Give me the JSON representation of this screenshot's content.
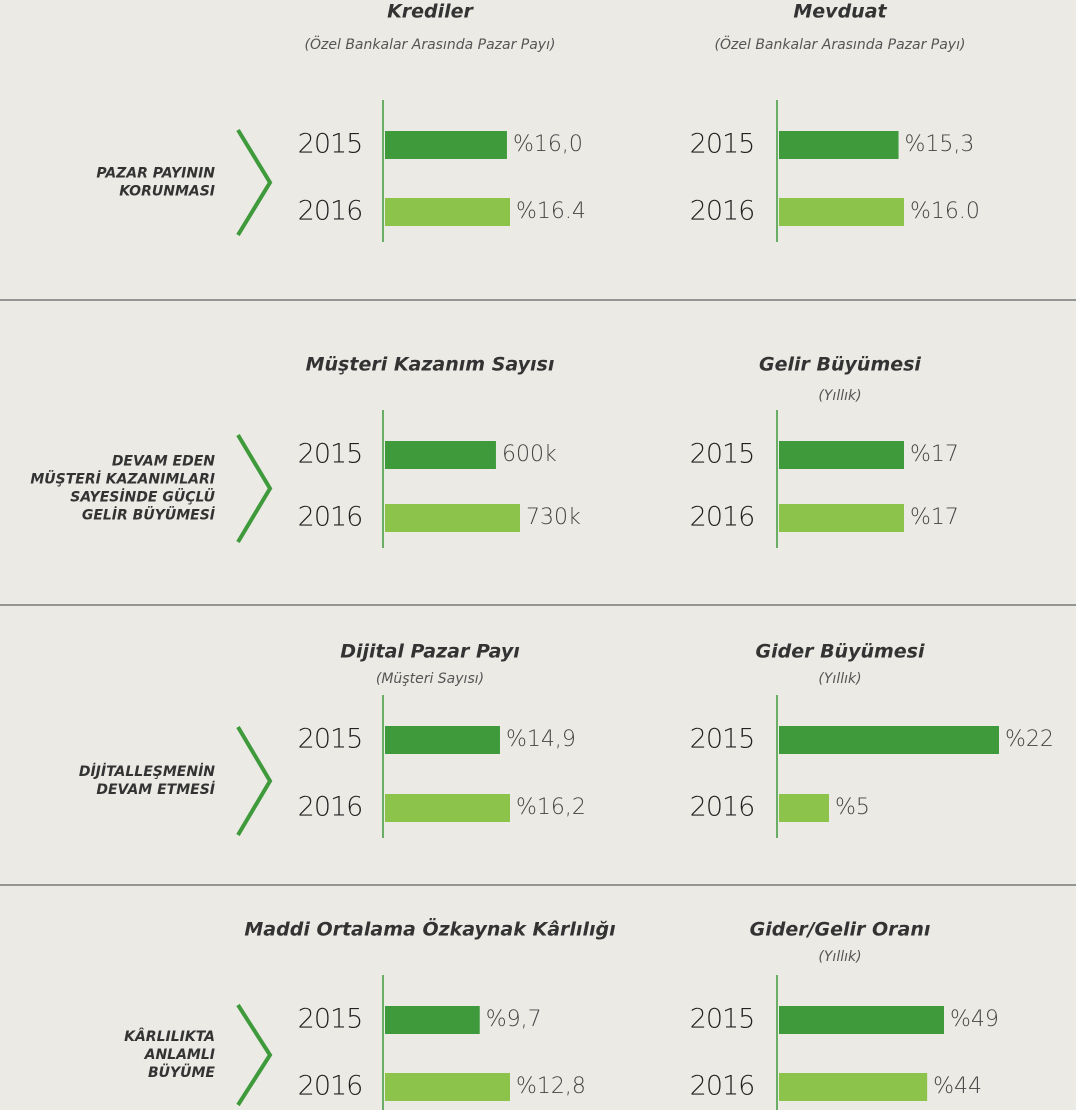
{
  "sections": [
    [
      "PAZAR PAYININ",
      "KORUNMASI"
    ],
    [
      "DEVAM EDEN",
      "MÜŞTERİ KAZANIMLARI",
      "SAYESİNDE GÜÇLÜ",
      "GELİR BÜYÜMESİ"
    ],
    [
      "DİJİTALLEŞMENİN",
      "DEVAM ETMESİ"
    ],
    [
      "KÂRLILIKTA",
      "ANLAMLI",
      "BÜYÜME"
    ]
  ],
  "chart_data": [
    {
      "type": "bar",
      "title": "Krediler",
      "subtitle": "(Özel Bankalar Arasında Pazar Payı)",
      "categories": [
        "2015",
        "2016"
      ],
      "values": [
        16.0,
        16.4
      ],
      "value_labels": [
        "%16,0",
        "%16.4"
      ],
      "colors": [
        "#3f9a3b",
        "#8cc34b"
      ]
    },
    {
      "type": "bar",
      "title": "Mevduat",
      "subtitle": "(Özel Bankalar Arasında Pazar Payı)",
      "categories": [
        "2015",
        "2016"
      ],
      "values": [
        15.3,
        16.0
      ],
      "value_labels": [
        "%15,3",
        "%16.0"
      ],
      "colors": [
        "#3f9a3b",
        "#8cc34b"
      ]
    },
    {
      "type": "bar",
      "title": "Müşteri Kazanım Sayısı",
      "categories": [
        "2015",
        "2016"
      ],
      "values": [
        600000,
        730000
      ],
      "value_labels": [
        "600k",
        "730k"
      ],
      "colors": [
        "#3f9a3b",
        "#8cc34b"
      ]
    },
    {
      "type": "bar",
      "title": "Gelir Büyümesi",
      "subtitle": "(Yıllık)",
      "categories": [
        "2015",
        "2016"
      ],
      "values": [
        17,
        17
      ],
      "value_labels": [
        "%17",
        "%17"
      ],
      "colors": [
        "#3f9a3b",
        "#8cc34b"
      ]
    },
    {
      "type": "bar",
      "title": "Dijital Pazar Payı",
      "subtitle": "(Müşteri Sayısı)",
      "categories": [
        "2015",
        "2016"
      ],
      "values": [
        14.9,
        16.2
      ],
      "value_labels": [
        "%14,9",
        "%16,2"
      ],
      "colors": [
        "#3f9a3b",
        "#8cc34b"
      ]
    },
    {
      "type": "bar",
      "title": "Gider Büyümesi",
      "subtitle": "(Yıllık)",
      "categories": [
        "2015",
        "2016"
      ],
      "values": [
        22,
        5
      ],
      "value_labels": [
        "%22",
        "%5"
      ],
      "colors": [
        "#3f9a3b",
        "#8cc34b"
      ]
    },
    {
      "type": "bar",
      "title": "Maddi Ortalama Özkaynak Kârlılığı",
      "categories": [
        "2015",
        "2016"
      ],
      "values": [
        9.7,
        12.8
      ],
      "value_labels": [
        "%9,7",
        "%12,8"
      ],
      "colors": [
        "#3f9a3b",
        "#8cc34b"
      ]
    },
    {
      "type": "bar",
      "title": "Gider/Gelir Oranı",
      "subtitle": "(Yıllık)",
      "categories": [
        "2015",
        "2016"
      ],
      "values": [
        49,
        44
      ],
      "value_labels": [
        "%49",
        "%44"
      ],
      "colors": [
        "#3f9a3b",
        "#8cc34b"
      ]
    }
  ]
}
